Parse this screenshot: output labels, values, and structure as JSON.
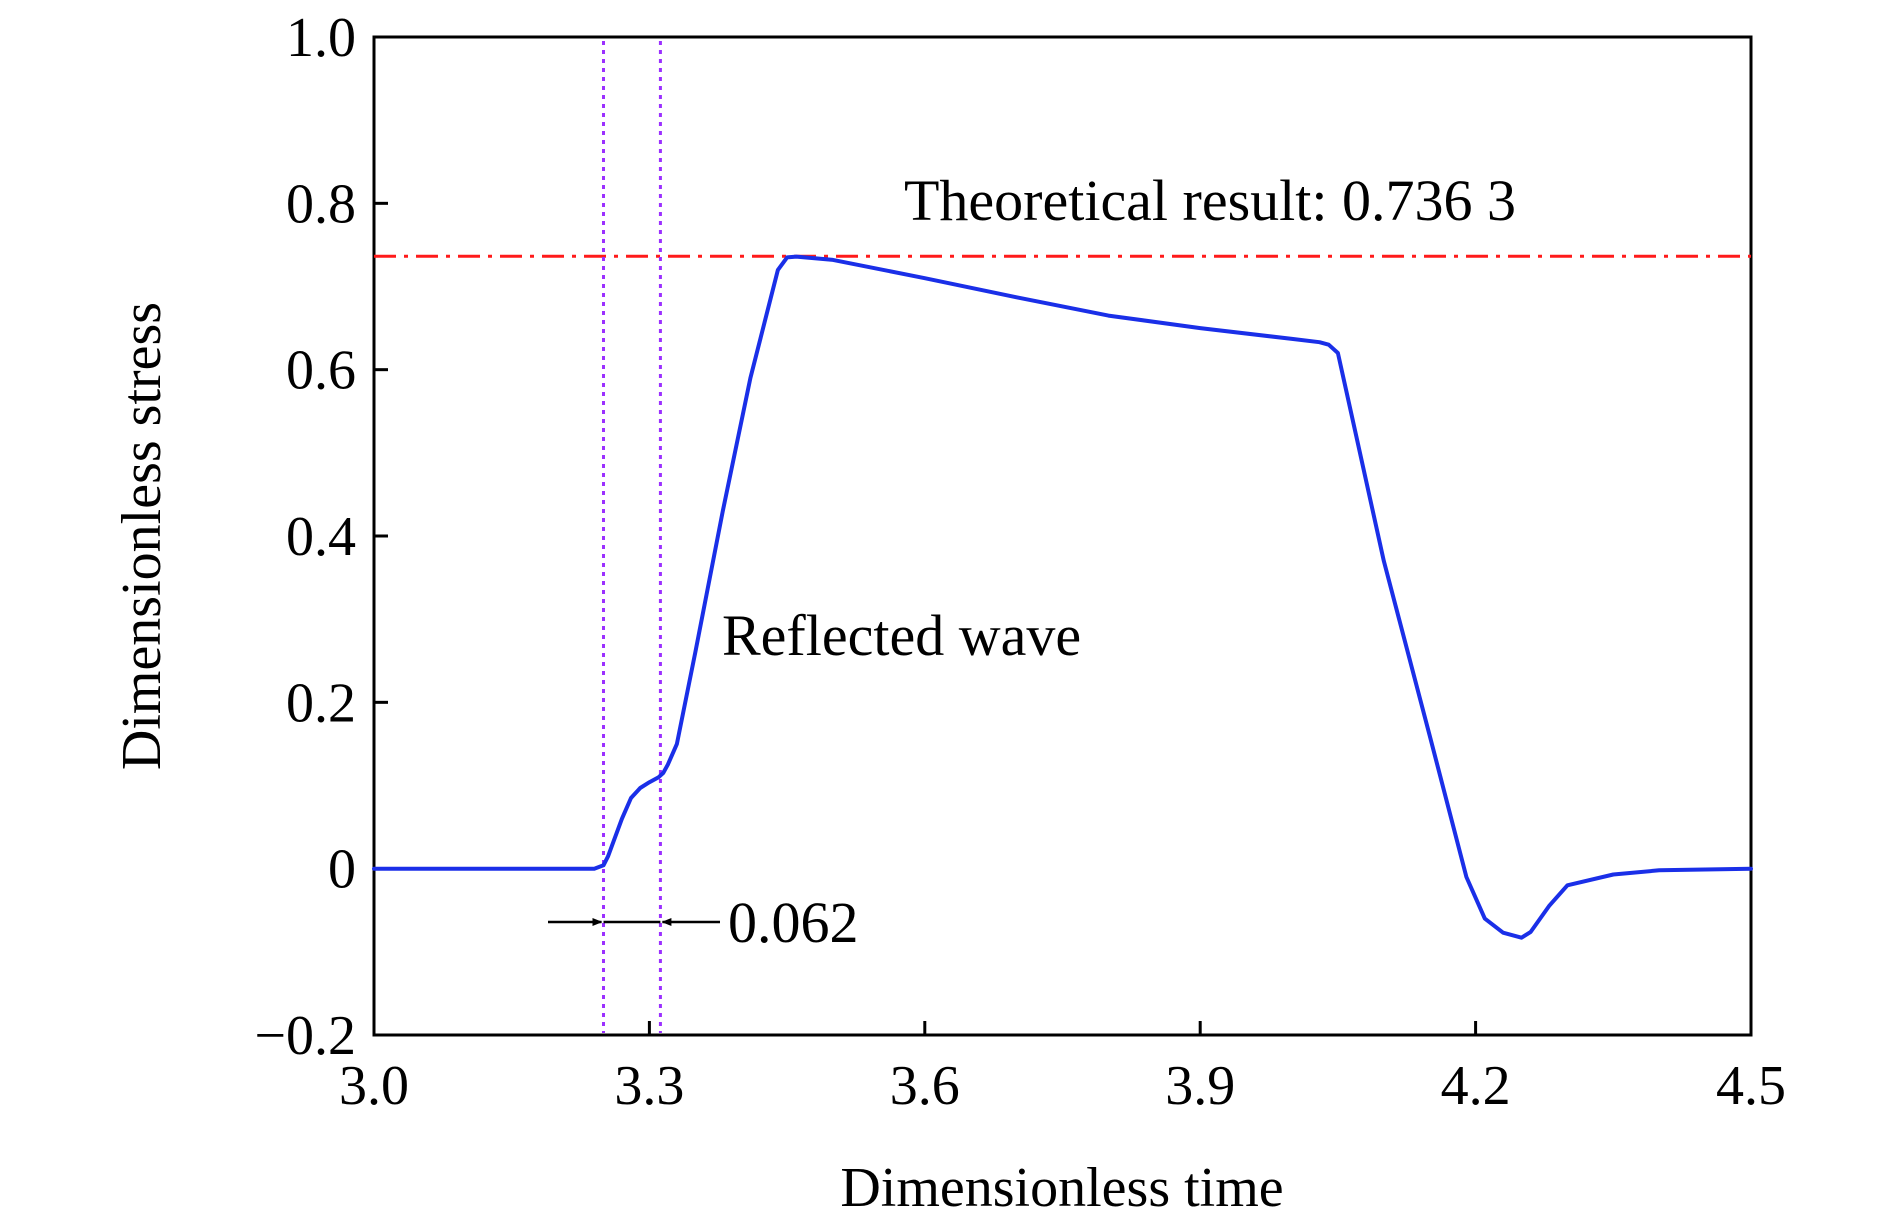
{
  "chart_data": {
    "type": "line",
    "xlabel": "Dimensionless time",
    "ylabel": "Dimensionless stress",
    "xlim": [
      3.0,
      4.5
    ],
    "ylim": [
      -0.2,
      1.0
    ],
    "xticks": [
      3.0,
      3.3,
      3.6,
      3.9,
      4.2,
      4.5
    ],
    "xtick_labels": [
      "3.0",
      "3.3",
      "3.6",
      "3.9",
      "4.2",
      "4.5"
    ],
    "yticks": [
      -0.2,
      0,
      0.2,
      0.4,
      0.6,
      0.8,
      1.0
    ],
    "ytick_labels": [
      "−0.2",
      "0",
      "0.2",
      "0.4",
      "0.6",
      "0.8",
      "1.0"
    ],
    "grid": false,
    "colors": {
      "curve": "#1a2fe8",
      "reference": "#ff1a1a",
      "markers": "#9b30ff"
    },
    "series": [
      {
        "x": [
          3.0,
          3.1,
          3.2,
          3.24,
          3.25,
          3.255,
          3.26,
          3.27,
          3.28,
          3.29,
          3.3,
          3.31,
          3.315,
          3.32,
          3.33,
          3.35,
          3.38,
          3.41,
          3.44,
          3.45,
          3.46,
          3.5,
          3.6,
          3.7,
          3.8,
          3.9,
          4.0,
          4.03,
          4.04,
          4.05,
          4.06,
          4.1,
          4.15,
          4.19,
          4.21,
          4.23,
          4.25,
          4.26,
          4.28,
          4.3,
          4.35,
          4.4,
          4.5
        ],
        "y": [
          0,
          0,
          0,
          0,
          0.004,
          0.015,
          0.03,
          0.06,
          0.085,
          0.097,
          0.104,
          0.11,
          0.115,
          0.125,
          0.15,
          0.26,
          0.43,
          0.59,
          0.72,
          0.735,
          0.736,
          0.732,
          0.71,
          0.687,
          0.665,
          0.65,
          0.637,
          0.633,
          0.63,
          0.62,
          0.57,
          0.37,
          0.16,
          -0.01,
          -0.06,
          -0.077,
          -0.083,
          -0.076,
          -0.045,
          -0.02,
          -0.007,
          -0.002,
          0
        ]
      }
    ],
    "reference_line": {
      "y": 0.7363,
      "label": "Theoretical result: 0.736 3"
    },
    "marker_lines": [
      3.25,
      3.312
    ],
    "annotations": {
      "reflected": "Reflected wave",
      "interval": "0.062"
    }
  }
}
